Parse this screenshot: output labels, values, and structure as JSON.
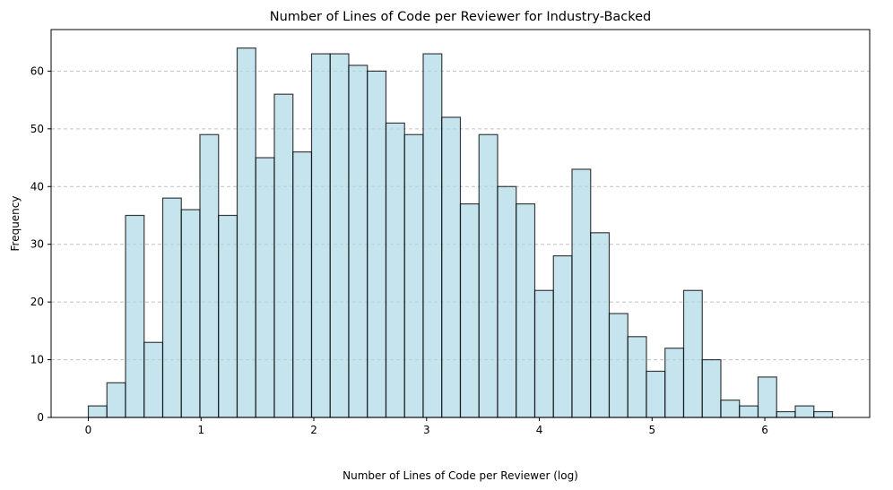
{
  "chart_data": {
    "type": "bar",
    "title": "Number of Lines of Code per Reviewer for Industry-Backed",
    "xlabel": "Number of Lines of Code per Reviewer (log)",
    "ylabel": "Frequency",
    "bins_start": [
      0.0,
      0.165,
      0.33,
      0.495,
      0.66,
      0.825,
      0.99,
      1.155,
      1.32,
      1.485,
      1.65,
      1.815,
      1.98,
      2.145,
      2.31,
      2.475,
      2.64,
      2.805,
      2.97,
      3.135,
      3.3,
      3.465,
      3.63,
      3.795,
      3.96,
      4.125,
      4.29,
      4.455,
      4.62,
      4.785,
      4.95,
      5.115,
      5.28,
      5.445,
      5.61,
      5.775,
      5.94,
      6.105,
      6.27,
      6.435
    ],
    "bin_width": 0.165,
    "values": [
      2,
      6,
      35,
      13,
      38,
      36,
      49,
      35,
      64,
      45,
      56,
      46,
      63,
      63,
      61,
      60,
      51,
      49,
      63,
      52,
      37,
      49,
      40,
      37,
      22,
      28,
      43,
      32,
      18,
      14,
      8,
      12,
      22,
      10,
      3,
      2,
      7,
      1,
      2,
      1
    ],
    "xlim": [
      -0.33,
      6.93
    ],
    "ylim": [
      0,
      67.2
    ],
    "xticks": [
      0,
      1,
      2,
      3,
      4,
      5,
      6
    ],
    "xtick_labels": [
      "0",
      "1",
      "2",
      "3",
      "4",
      "5",
      "6"
    ],
    "yticks": [
      0,
      10,
      20,
      30,
      40,
      50,
      60
    ],
    "ytick_labels": [
      "0",
      "10",
      "20",
      "30",
      "40",
      "50",
      "60"
    ],
    "grid": "y-dashed",
    "bar_color": "#add8e6",
    "bar_edge_color": "#000000",
    "grid_color": "#b0b0b0"
  }
}
